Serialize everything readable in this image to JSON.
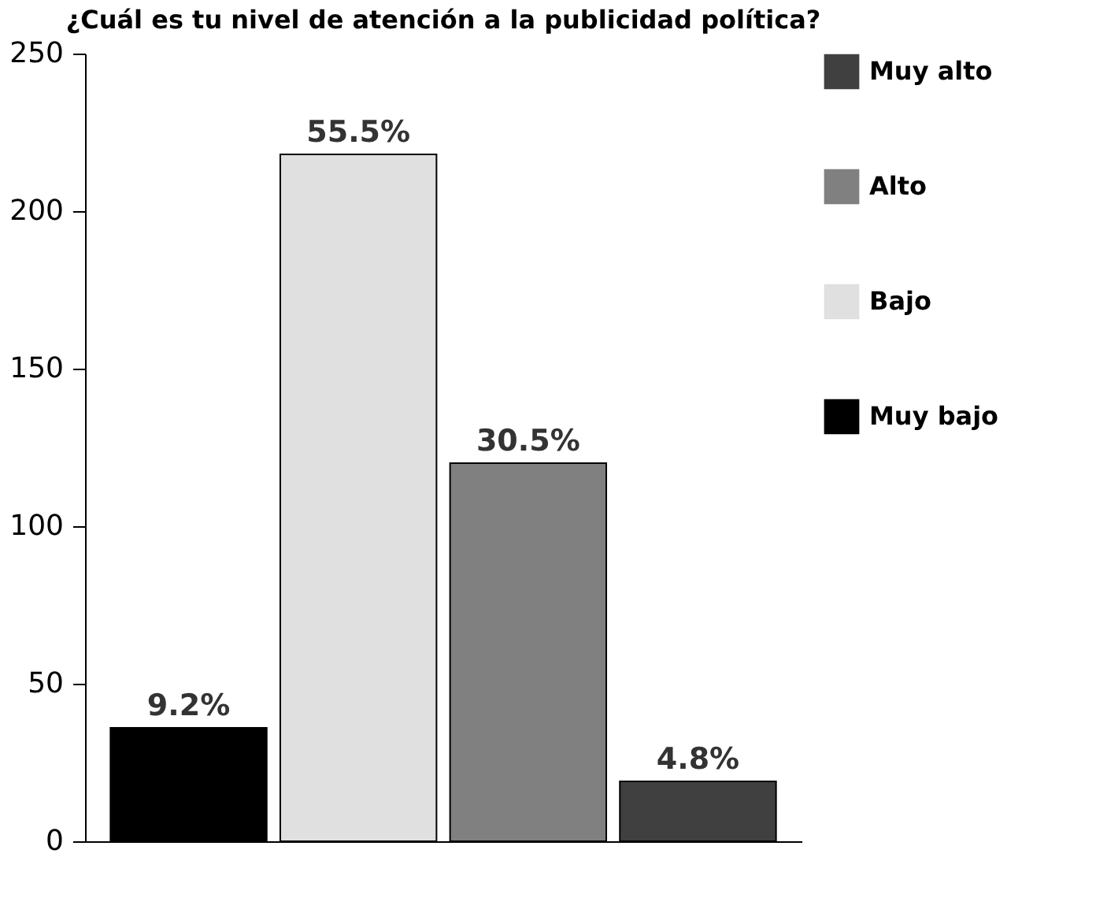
{
  "chart_data": {
    "type": "bar",
    "title": "¿Cuál es tu nivel de atención a la publicidad política?",
    "categories": [
      null,
      null,
      null,
      null
    ],
    "series": [
      {
        "name": "Muy alto",
        "color": "#404040",
        "values": [
          null,
          null,
          null,
          19
        ]
      },
      {
        "name": "Alto",
        "color": "#808080",
        "values": [
          null,
          null,
          120,
          null
        ]
      },
      {
        "name": "Bajo",
        "color": "#e0e0e0",
        "values": [
          null,
          218,
          null,
          null
        ]
      },
      {
        "name": "Muy bajo",
        "color": "#000000",
        "values": [
          36,
          null,
          null,
          null
        ]
      }
    ],
    "annotations": [
      {
        "text": "9.2%",
        "y": 36
      },
      {
        "text": "55.5%",
        "y": 218
      },
      {
        "text": "30.5%",
        "y": 120
      },
      {
        "text": "4.8%",
        "y": 19
      }
    ],
    "ylim": [
      0,
      250
    ],
    "yticks": [
      0,
      50,
      100,
      150,
      200,
      250
    ],
    "grid": false,
    "legend": "right"
  }
}
